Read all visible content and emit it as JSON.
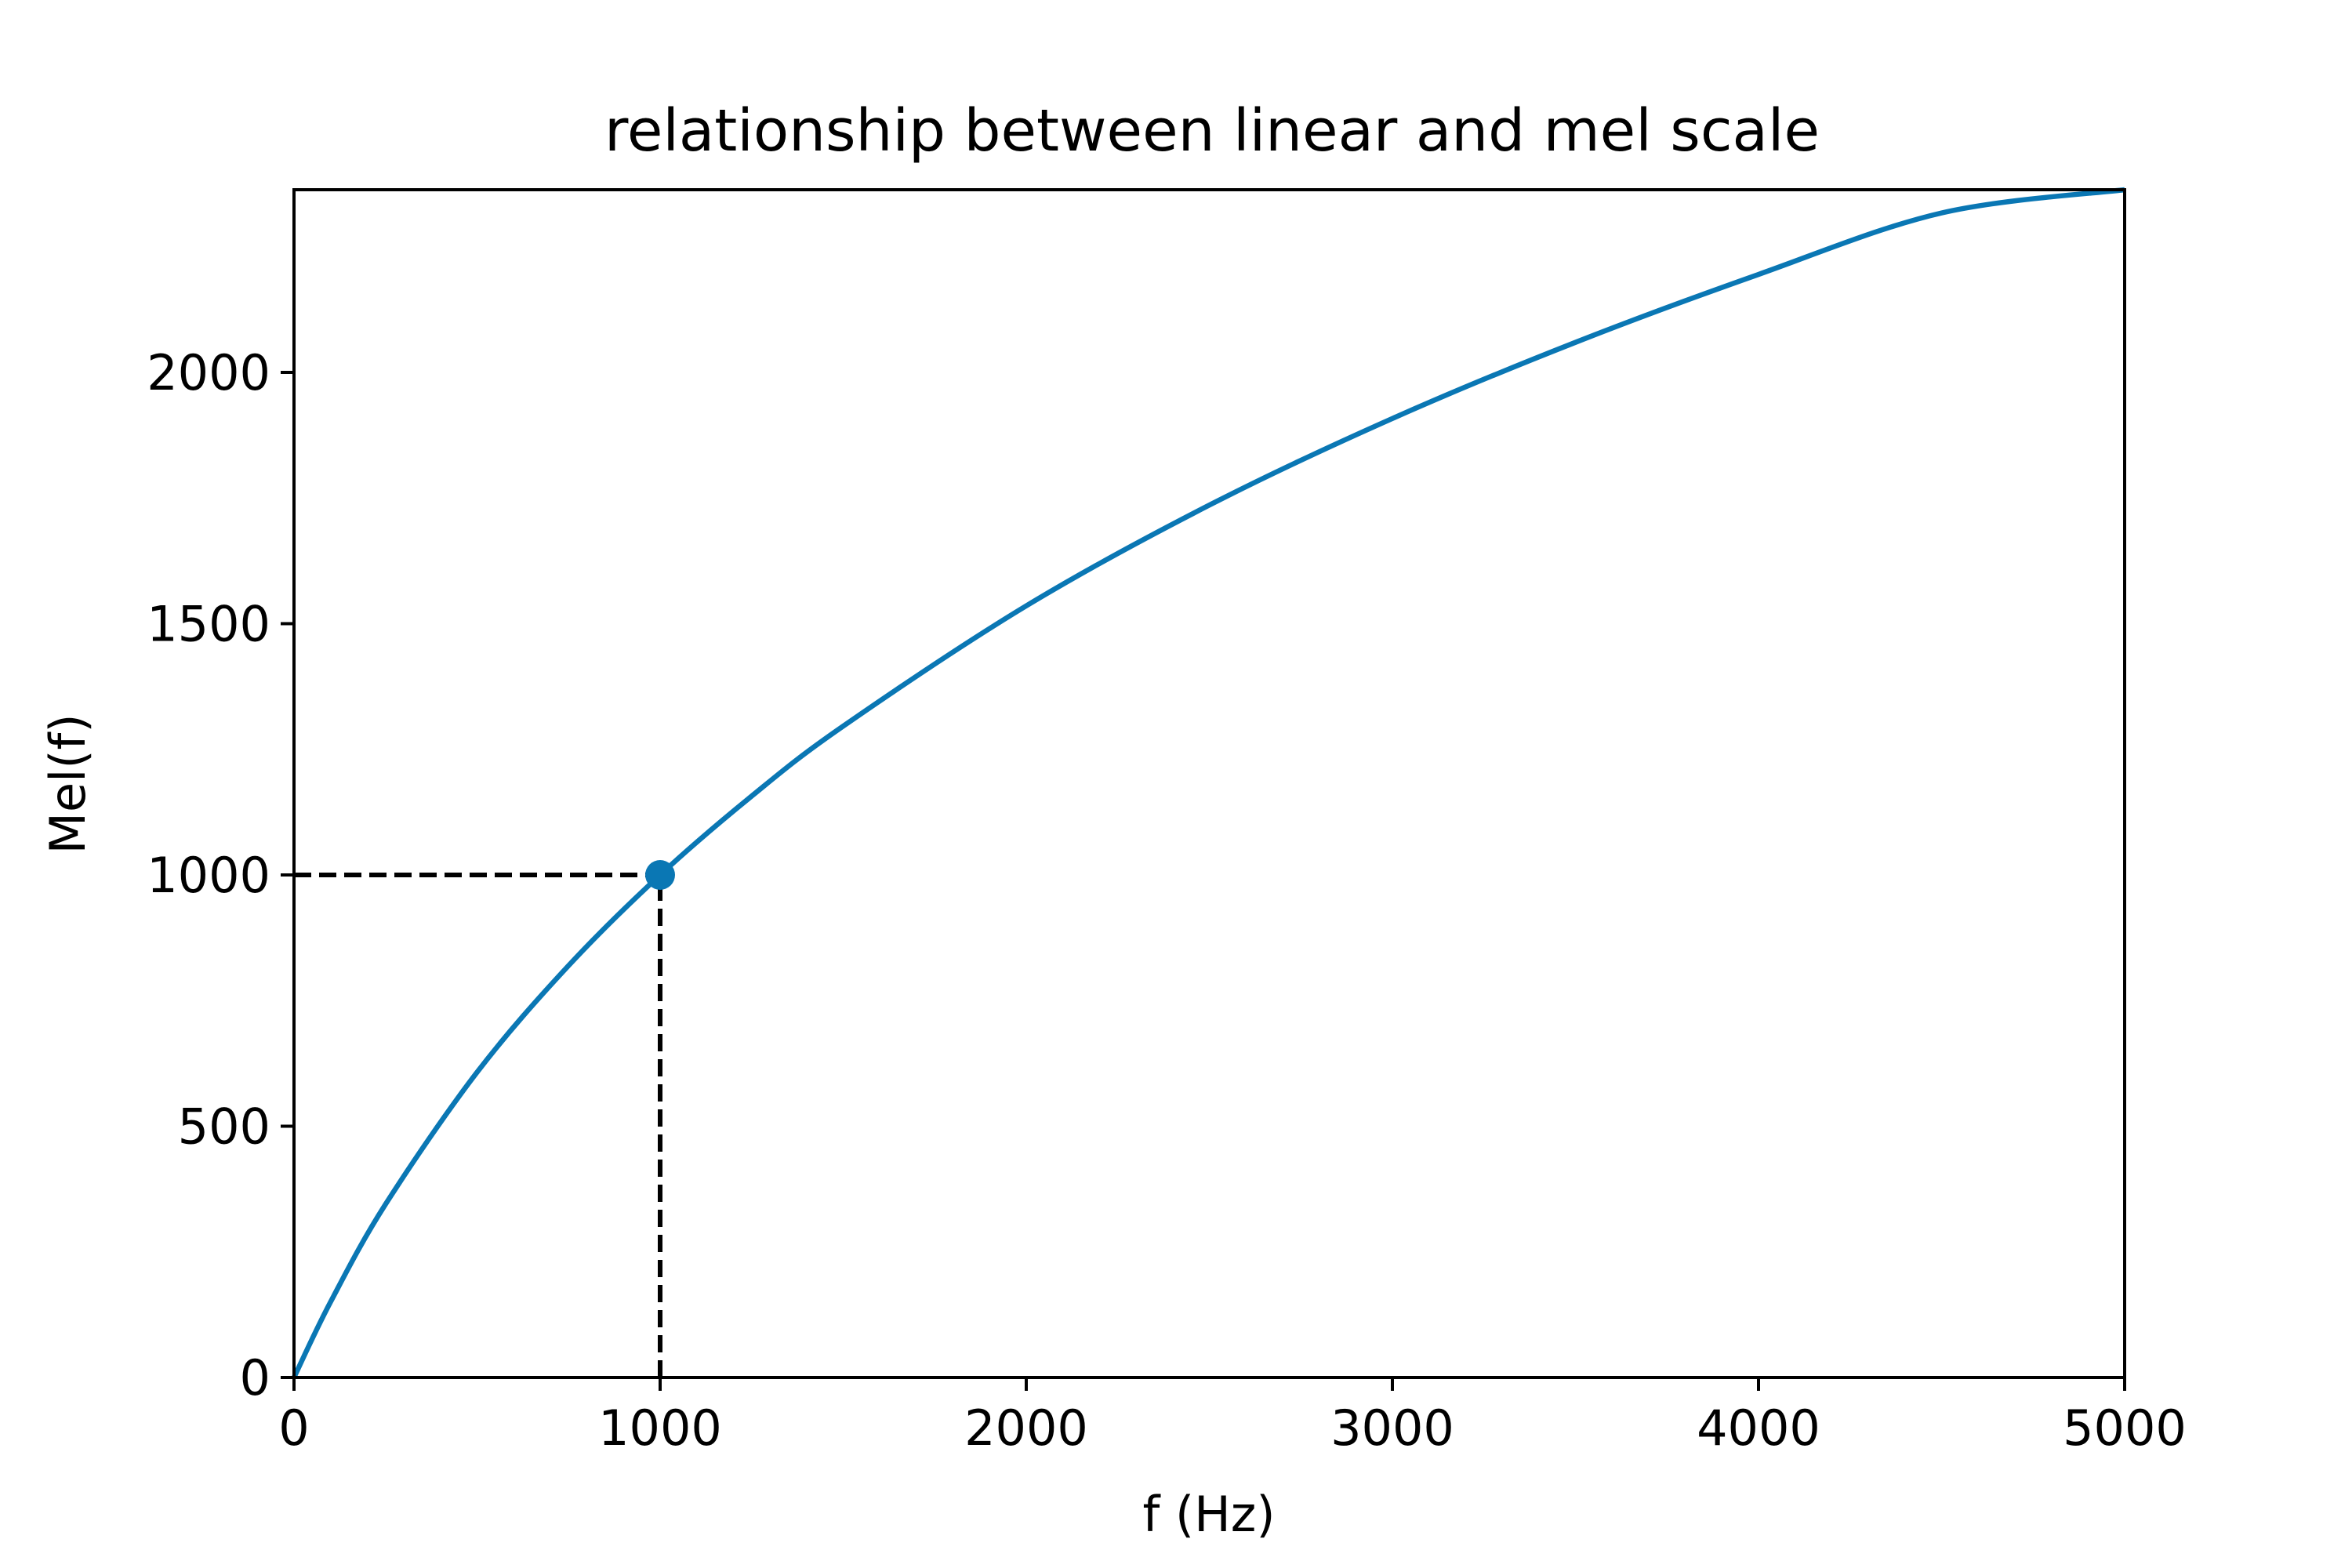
{
  "chart_data": {
    "type": "line",
    "title": "relationship between linear and mel scale",
    "xlabel": "f (Hz)",
    "ylabel": "Mel(f)",
    "xlim": [
      0,
      5000
    ],
    "ylim": [
      0,
      2363.5
    ],
    "xticks": [
      0,
      1000,
      2000,
      3000,
      4000,
      5000
    ],
    "yticks": [
      0,
      500,
      1000,
      1500,
      2000
    ],
    "grid": false,
    "series": [
      {
        "x": [
          0,
          100,
          250,
          500,
          750,
          1000,
          1250,
          1500,
          2000,
          2500,
          3000,
          3500,
          4000,
          4500,
          5000
        ],
        "y": [
          0,
          150.5,
          344.7,
          607.4,
          819.7,
          1000.0,
          1156.9,
          1296.1,
          1535.5,
          1735.9,
          1908.3,
          2059.8,
          2195.0,
          2317.3,
          2363.5
        ],
        "color": "#0a77b4",
        "style": "solid"
      }
    ],
    "highlight_point": {
      "x": 1000,
      "y": 1000,
      "color": "#0a77b4"
    },
    "reference_lines": [
      {
        "from": [
          0,
          1000
        ],
        "to": [
          1000,
          1000
        ],
        "style": "dashed",
        "color": "#000000"
      },
      {
        "from": [
          1000,
          0
        ],
        "to": [
          1000,
          1000
        ],
        "style": "dashed",
        "color": "#000000"
      }
    ]
  }
}
